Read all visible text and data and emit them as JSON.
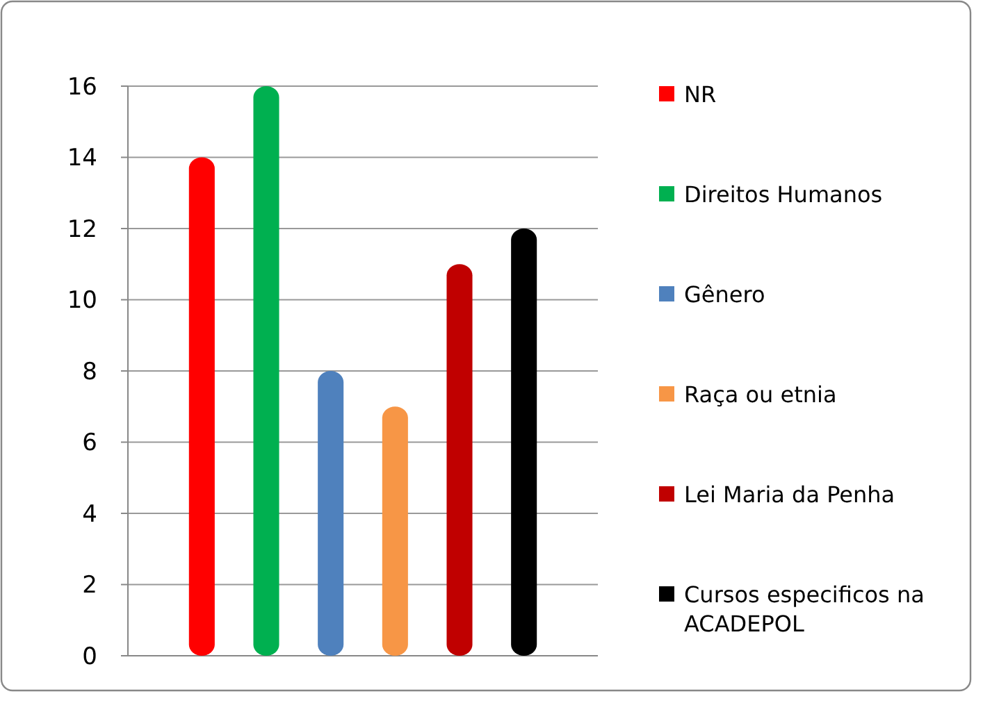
{
  "chart_data": {
    "type": "bar",
    "categories": [
      null
    ],
    "series": [
      {
        "name": "NR",
        "color": "#ff0000",
        "values": [
          14
        ]
      },
      {
        "name": "Direitos Humanos",
        "color": "#00b050",
        "values": [
          16
        ]
      },
      {
        "name": "Gênero",
        "color": "#4f81bd",
        "values": [
          8
        ]
      },
      {
        "name": "Raça ou etnia",
        "color": "#f79646",
        "values": [
          7
        ]
      },
      {
        "name": "Lei Maria da Penha",
        "color": "#c00000",
        "values": [
          11
        ]
      },
      {
        "name": "Cursos especificos na ACADEPOL",
        "color": "#000000",
        "values": [
          12
        ]
      }
    ],
    "ylim": [
      0,
      16
    ],
    "yticks": [
      0,
      2,
      4,
      6,
      8,
      10,
      12,
      14,
      16
    ],
    "grid": "y",
    "legend": "right"
  }
}
